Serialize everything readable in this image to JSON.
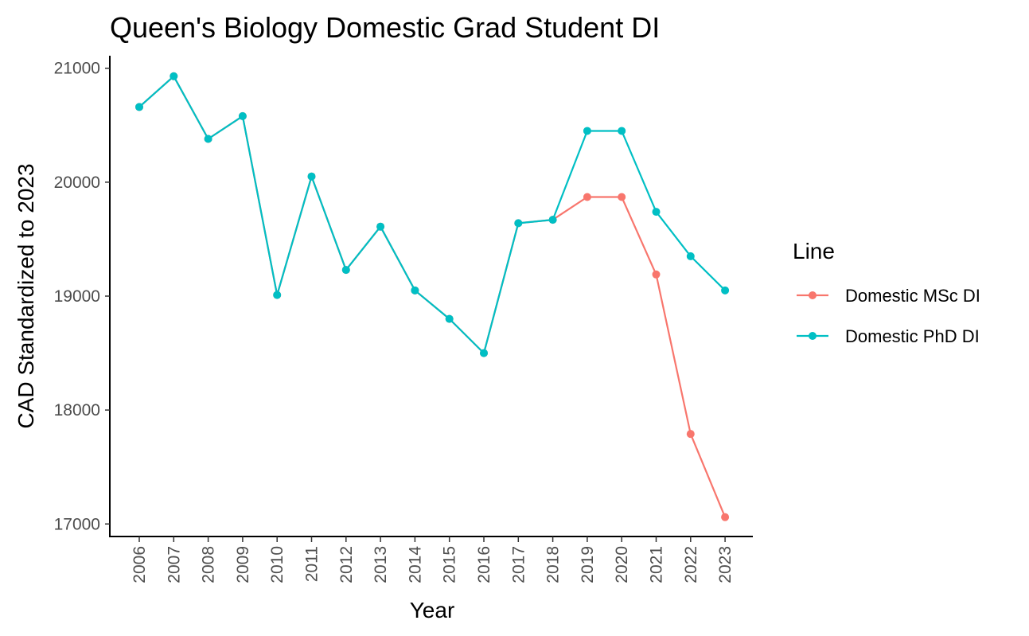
{
  "chart_data": {
    "type": "line",
    "title": "Queen's Biology Domestic Grad Student DI",
    "xlabel": "Year",
    "ylabel": "CAD Standardized to 2023",
    "x": [
      2006,
      2007,
      2008,
      2009,
      2010,
      2011,
      2012,
      2013,
      2014,
      2015,
      2016,
      2017,
      2018,
      2019,
      2020,
      2021,
      2022,
      2023
    ],
    "x_tick_labels": [
      "2006",
      "2007",
      "2008",
      "2009",
      "2010",
      "2011",
      "2012",
      "2013",
      "2014",
      "2015",
      "2016",
      "2017",
      "2018",
      "2019",
      "2020",
      "2021",
      "2022",
      "2023"
    ],
    "y_ticks": [
      17000,
      18000,
      19000,
      20000,
      21000
    ],
    "y_tick_labels": [
      "17000",
      "18000",
      "19000",
      "20000",
      "21000"
    ],
    "ylim": [
      16890,
      21110
    ],
    "grid": false,
    "legend": {
      "title": "Line",
      "position": "right"
    },
    "series": [
      {
        "name": "Domestic MSc DI",
        "color": "#F8766D",
        "values": [
          20660,
          20930,
          20380,
          20580,
          19010,
          20050,
          19230,
          19610,
          19050,
          18800,
          18500,
          19640,
          19670,
          19870,
          19870,
          19190,
          17790,
          17060
        ]
      },
      {
        "name": "Domestic PhD DI",
        "color": "#00BFC4",
        "values": [
          20660,
          20930,
          20380,
          20580,
          19010,
          20050,
          19230,
          19610,
          19050,
          18800,
          18500,
          19640,
          19670,
          20450,
          20450,
          19740,
          19350,
          19050
        ]
      }
    ]
  }
}
